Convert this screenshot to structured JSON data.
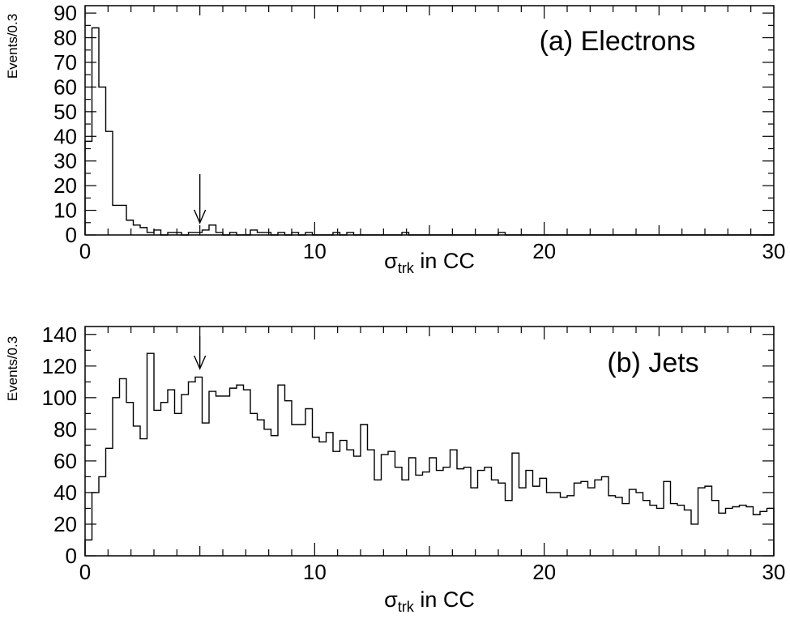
{
  "chart_data": [
    {
      "type": "histogram",
      "title": "(a) Electrons",
      "xlabel": "σ",
      "xlabel_sub": "trk",
      "xlabel_rest": " in CC",
      "ylabel": "Events/0.3",
      "xlim": [
        0,
        30
      ],
      "ylim": [
        0,
        93
      ],
      "grid": false,
      "bin_width": 0.3,
      "x_ticks": [
        0,
        10,
        20,
        30
      ],
      "x_tick_labels": [
        "0",
        "10",
        "20",
        "30"
      ],
      "y_ticks": [
        0,
        10,
        20,
        30,
        40,
        50,
        60,
        70,
        80,
        90
      ],
      "y_tick_labels": [
        "0",
        "10",
        "20",
        "30",
        "40",
        "50",
        "60",
        "70",
        "80",
        "90"
      ],
      "cut_arrow_x": 5.0,
      "values": [
        38,
        84,
        60,
        42,
        12,
        12,
        6,
        4,
        3,
        1,
        2,
        0,
        1,
        1,
        0,
        1,
        1,
        2,
        4,
        1,
        0,
        1,
        0,
        0,
        2,
        1,
        1,
        0,
        1,
        0,
        1,
        0,
        1,
        0,
        0,
        0,
        1,
        0,
        1,
        0,
        0,
        0,
        0,
        0,
        0,
        0,
        1,
        0,
        0,
        0,
        0,
        0,
        0,
        0,
        0,
        0,
        0,
        0,
        0,
        0,
        1,
        0,
        0,
        0,
        0,
        0,
        0,
        0,
        0,
        0,
        0,
        0,
        0,
        0,
        0,
        0,
        0,
        0,
        0,
        0,
        0,
        0,
        0,
        0,
        0,
        0,
        0,
        0,
        0,
        0,
        0,
        0,
        0,
        0,
        0,
        0,
        0,
        0,
        0,
        0
      ]
    },
    {
      "type": "histogram",
      "title": "(b) Jets",
      "xlabel": "σ",
      "xlabel_sub": "trk",
      "xlabel_rest": " in CC",
      "ylabel": "Events/0.3",
      "xlim": [
        0,
        30
      ],
      "ylim": [
        0,
        145
      ],
      "grid": false,
      "bin_width": 0.3,
      "x_ticks": [
        0,
        10,
        20,
        30
      ],
      "x_tick_labels": [
        "0",
        "10",
        "20",
        "30"
      ],
      "y_ticks": [
        0,
        20,
        40,
        60,
        80,
        100,
        120,
        140
      ],
      "y_tick_labels": [
        "0",
        "20",
        "40",
        "60",
        "80",
        "100",
        "120",
        "140"
      ],
      "cut_arrow_x": 5.0,
      "values": [
        10,
        40,
        50,
        68,
        100,
        112,
        97,
        82,
        74,
        128,
        92,
        97,
        105,
        90,
        102,
        110,
        113,
        84,
        104,
        101,
        101,
        106,
        108,
        105,
        90,
        86,
        80,
        76,
        108,
        98,
        83,
        83,
        93,
        75,
        72,
        78,
        66,
        73,
        67,
        63,
        83,
        67,
        48,
        64,
        66,
        56,
        48,
        62,
        51,
        53,
        62,
        54,
        56,
        67,
        55,
        56,
        43,
        54,
        56,
        48,
        46,
        35,
        65,
        43,
        54,
        44,
        49,
        40,
        40,
        37,
        38,
        46,
        47,
        43,
        48,
        50,
        38,
        37,
        33,
        42,
        40,
        35,
        32,
        30,
        47,
        33,
        32,
        29,
        20,
        43,
        44,
        35,
        27,
        30,
        31,
        32,
        31,
        26,
        28,
        30
      ]
    }
  ]
}
